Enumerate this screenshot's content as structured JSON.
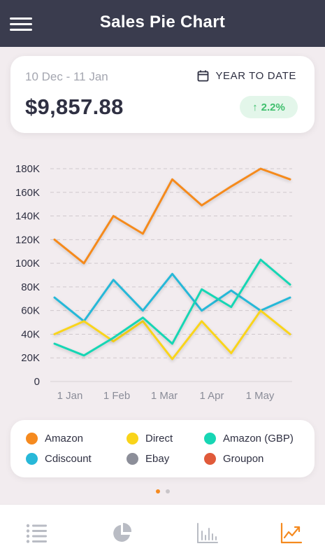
{
  "app": {
    "title": "Sales Pie Chart"
  },
  "summary": {
    "date_range": "10 Dec - 11 Jan",
    "period_label": "YEAR TO DATE",
    "total_value": "$9,857.88",
    "change_arrow": "↑",
    "change_text": "2.2%"
  },
  "colors": {
    "header_bg": "#3a3c4e",
    "positive": "#3fbf6d",
    "active_tab": "#f58a1f",
    "inactive_tab": "#b9bcc4"
  },
  "chart_data": {
    "type": "line",
    "y_ticks": [
      "0",
      "20K",
      "40K",
      "60K",
      "80K",
      "100K",
      "120K",
      "140K",
      "160K",
      "180K"
    ],
    "x_ticks": [
      "1 Jan",
      "1 Feb",
      "1 Mar",
      "1 Apr",
      "1 May"
    ],
    "ylim": [
      0,
      180000
    ],
    "grid": "horizontal dashed",
    "series": [
      {
        "name": "Amazon",
        "color": "#f58a1f",
        "values": [
          120000,
          100000,
          140000,
          125000,
          171000,
          149000,
          165000,
          180000,
          171000
        ]
      },
      {
        "name": "Cdiscount",
        "color": "#28b8d8",
        "values": [
          71000,
          51000,
          86000,
          60000,
          91000,
          60000,
          77000,
          60000,
          71000
        ]
      },
      {
        "name": "Direct",
        "color": "#f9d41a",
        "values": [
          40000,
          51000,
          34000,
          51000,
          19000,
          51000,
          24000,
          60000,
          40000
        ]
      },
      {
        "name": "Amazon (GBP)",
        "color": "#17d6b4",
        "values": [
          32000,
          22000,
          37000,
          54000,
          32000,
          78000,
          63000,
          103000,
          82000
        ]
      }
    ]
  },
  "legend": {
    "items": [
      {
        "label": "Amazon",
        "color": "#f58a1f"
      },
      {
        "label": "Direct",
        "color": "#f9d41a"
      },
      {
        "label": "Amazon (GBP)",
        "color": "#17d6b4"
      },
      {
        "label": "Cdiscount",
        "color": "#28b8d8"
      },
      {
        "label": "Ebay",
        "color": "#8c8e99"
      },
      {
        "label": "Groupon",
        "color": "#e05a3a"
      }
    ]
  },
  "pager": {
    "active_index": 0,
    "count": 2
  },
  "nav": {
    "items": [
      {
        "icon": "list-icon",
        "active": false
      },
      {
        "icon": "pie-chart-icon",
        "active": false
      },
      {
        "icon": "bar-chart-icon",
        "active": false
      },
      {
        "icon": "line-chart-icon",
        "active": true
      }
    ]
  }
}
